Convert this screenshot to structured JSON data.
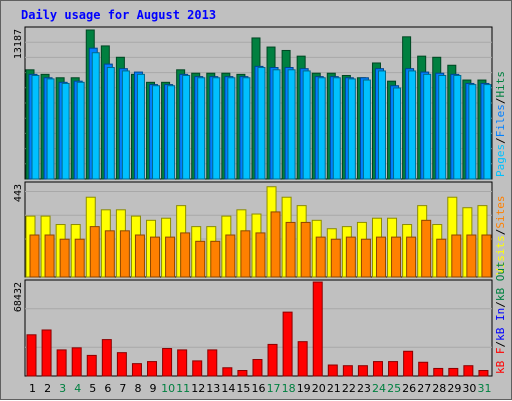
{
  "chart_data": {
    "type": "bar",
    "title": "Daily usage for August 2013",
    "categories": [
      "1",
      "2",
      "3",
      "4",
      "5",
      "6",
      "7",
      "8",
      "9",
      "10",
      "11",
      "12",
      "13",
      "14",
      "15",
      "16",
      "17",
      "18",
      "19",
      "20",
      "21",
      "22",
      "23",
      "24",
      "25",
      "26",
      "27",
      "28",
      "29",
      "30",
      "31"
    ],
    "weekend_days": [
      "3",
      "4",
      "10",
      "11",
      "17",
      "18",
      "24",
      "25",
      "31"
    ],
    "panels": [
      {
        "name": "hits-files-pages",
        "ymax_label": "13187",
        "ymax": 13187,
        "legend": [
          {
            "text": "Pages",
            "color": "#00c0ff"
          },
          {
            "text": "/",
            "color": "#000000"
          },
          {
            "text": "Files",
            "color": "#0080ff"
          },
          {
            "text": "/",
            "color": "#000000"
          },
          {
            "text": "Hits",
            "color": "#008040"
          }
        ],
        "series": [
          {
            "name": "Hits",
            "color": "#008040",
            "values": [
              9600,
              9200,
              8900,
              8900,
              13100,
              11700,
              10700,
              9200,
              8500,
              8500,
              9600,
              9300,
              9300,
              9300,
              9200,
              12400,
              11600,
              11300,
              10800,
              9300,
              9300,
              9100,
              8900,
              10200,
              8600,
              12500,
              10800,
              10700,
              10000,
              8700,
              8700
            ]
          },
          {
            "name": "Files",
            "color": "#0080ff",
            "values": [
              9200,
              8900,
              8500,
              8600,
              11500,
              10100,
              9700,
              9400,
              8300,
              8300,
              9200,
              9000,
              9000,
              9000,
              9000,
              9900,
              9800,
              9800,
              9700,
              9000,
              9000,
              8900,
              8900,
              9700,
              8200,
              9700,
              9400,
              9300,
              9200,
              8400,
              8400
            ]
          },
          {
            "name": "Pages",
            "color": "#00c0ff",
            "values": [
              9100,
              8800,
              8400,
              8500,
              11100,
              9800,
              9500,
              9200,
              8200,
              8200,
              9100,
              8900,
              8900,
              8900,
              8900,
              9800,
              9600,
              9600,
              9500,
              8900,
              8900,
              8800,
              8700,
              9500,
              8000,
              9500,
              9200,
              9100,
              9100,
              8300,
              8300
            ]
          }
        ]
      },
      {
        "name": "visits-sites",
        "ymax_label": "443",
        "ymax": 443,
        "legend": [
          {
            "text": "Visits",
            "color": "#ffff00"
          },
          {
            "text": "/",
            "color": "#000000"
          },
          {
            "text": "Sites",
            "color": "#ff8000"
          }
        ],
        "series": [
          {
            "name": "Visits",
            "color": "#ffff00",
            "values": [
              290,
              290,
              250,
              250,
              380,
              320,
              320,
              290,
              270,
              280,
              340,
              240,
              240,
              290,
              320,
              300,
              430,
              380,
              340,
              270,
              230,
              240,
              260,
              280,
              280,
              250,
              340,
              250,
              380,
              330,
              340
            ]
          },
          {
            "name": "Sites",
            "color": "#ff8000",
            "values": [
              200,
              200,
              180,
              180,
              240,
              220,
              220,
              200,
              190,
              190,
              210,
              170,
              170,
              200,
              220,
              210,
              310,
              260,
              260,
              190,
              180,
              190,
              180,
              190,
              190,
              190,
              270,
              180,
              200,
              200,
              200
            ]
          }
        ]
      },
      {
        "name": "kbytes",
        "ymax_label": "68432",
        "ymax": 68432,
        "legend": [
          {
            "text": "kB F",
            "color": "#ff0000"
          },
          {
            "text": "/",
            "color": "#000000"
          },
          {
            "text": "kB In",
            "color": "#0000ff"
          },
          {
            "text": "/",
            "color": "#000000"
          },
          {
            "text": "kB Out",
            "color": "#008040"
          }
        ],
        "series": [
          {
            "name": "kB F",
            "color": "#ff0000",
            "values": [
              30000,
              33500,
              19000,
              20500,
              15000,
              26500,
              17000,
              9000,
              10500,
              20000,
              19000,
              11000,
              19000,
              6000,
              4000,
              12000,
              23000,
              46500,
              25000,
              68400,
              8000,
              7500,
              7500,
              10500,
              10500,
              18000,
              10000,
              5500,
              5500,
              7500,
              4000
            ]
          }
        ]
      }
    ]
  }
}
